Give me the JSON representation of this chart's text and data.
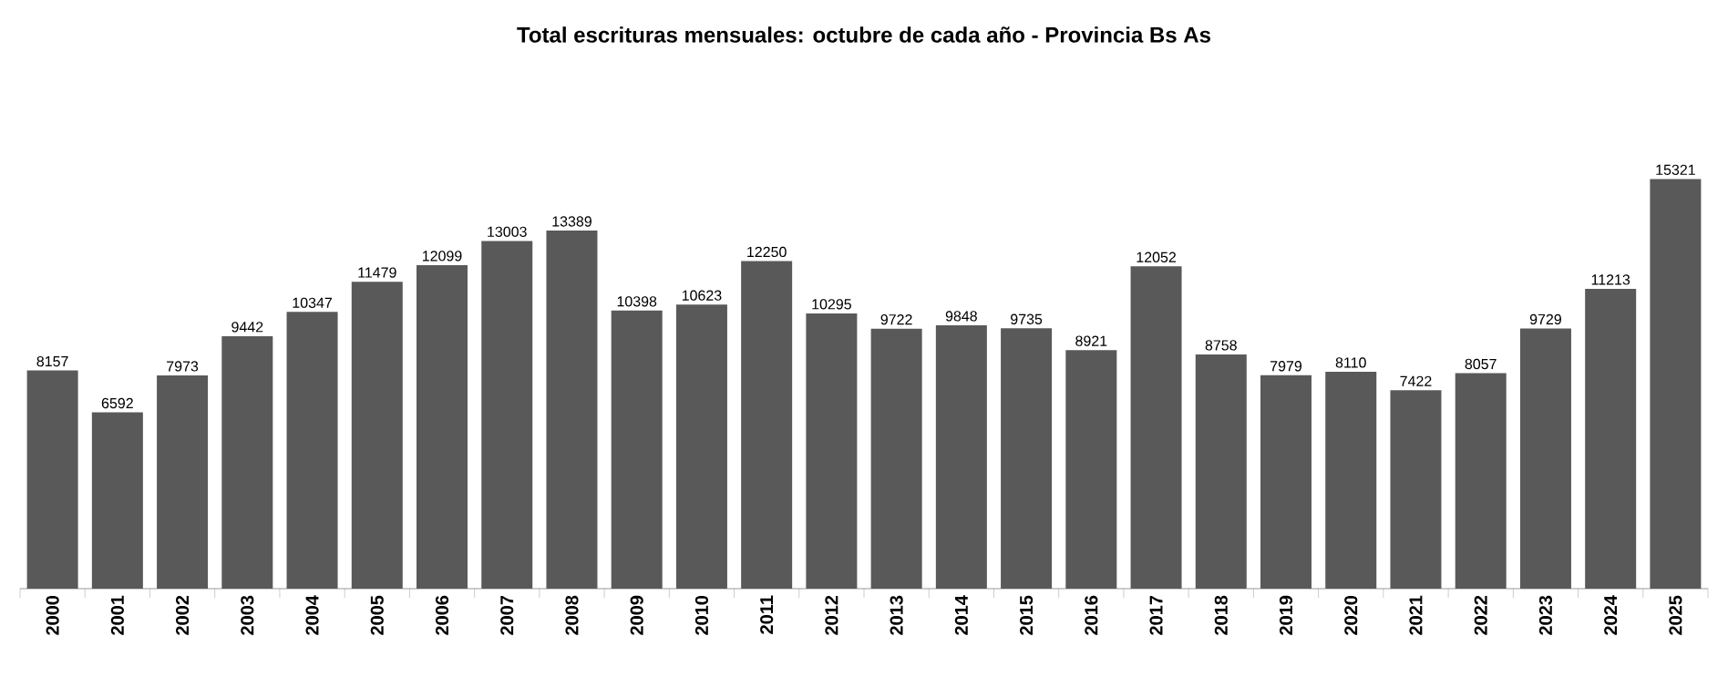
{
  "chart_data": {
    "type": "bar",
    "title": "Total escrituras mensuales: octubre de cada año - Provincia Bs As",
    "categories": [
      "2000",
      "2001",
      "2002",
      "2003",
      "2004",
      "2005",
      "2006",
      "2007",
      "2008",
      "2009",
      "2010",
      "2011",
      "2012",
      "2013",
      "2014",
      "2015",
      "2016",
      "2017",
      "2018",
      "2019",
      "2020",
      "2021",
      "2022",
      "2023",
      "2024",
      "2025"
    ],
    "values": [
      8157,
      6592,
      7973,
      9442,
      10347,
      11479,
      12099,
      13003,
      13389,
      10398,
      10623,
      12250,
      10295,
      9722,
      9848,
      9735,
      8921,
      12052,
      8758,
      7979,
      8110,
      7422,
      8057,
      9729,
      11213,
      15321
    ],
    "color": "#595959",
    "data_labels": true
  }
}
